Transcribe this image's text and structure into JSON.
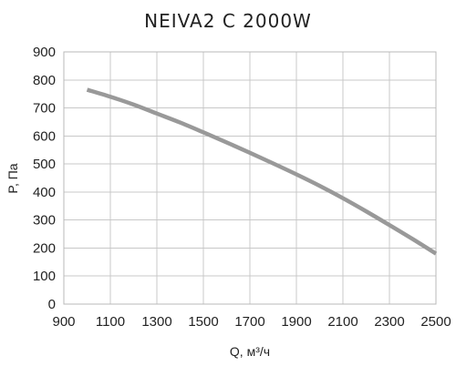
{
  "chart_data": {
    "type": "line",
    "title": "NEIVA2 C 2000W",
    "xlabel": "Q, м³/ч",
    "ylabel": "P, Па",
    "xlim": [
      900,
      2500
    ],
    "ylim": [
      0,
      900
    ],
    "xticks": [
      "900",
      "1100",
      "1300",
      "1500",
      "1700",
      "1900",
      "2100",
      "2300",
      "2500"
    ],
    "yticks": [
      "0",
      "100",
      "200",
      "300",
      "400",
      "500",
      "600",
      "700",
      "800",
      "900"
    ],
    "grid": true,
    "series": [
      {
        "color": "#999999",
        "x": [
          1000,
          1100,
          1200,
          1300,
          1400,
          1500,
          1600,
          1700,
          1800,
          1900,
          2000,
          2100,
          2200,
          2300,
          2400,
          2500
        ],
        "y": [
          765,
          740,
          712,
          680,
          648,
          613,
          577,
          540,
          502,
          463,
          422,
          378,
          331,
          282,
          232,
          180
        ]
      }
    ]
  }
}
